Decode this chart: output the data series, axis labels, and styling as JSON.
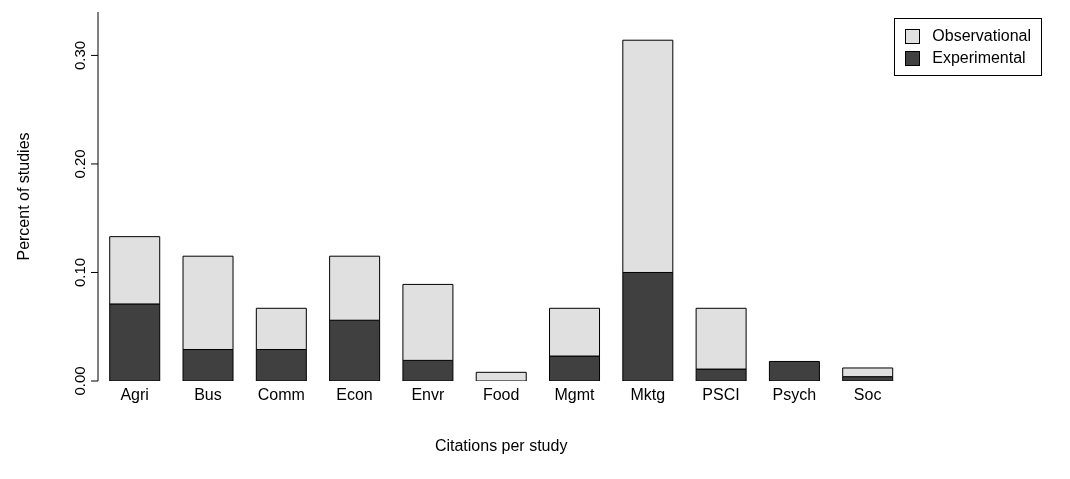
{
  "chart_data": {
    "type": "bar",
    "stacked": true,
    "xlabel": "Citations per study",
    "ylabel": "Percent of studies",
    "categories": [
      "Agri",
      "Bus",
      "Comm",
      "Econ",
      "Envr",
      "Food",
      "Mgmt",
      "Mktg",
      "PSCI",
      "Psych",
      "Soc"
    ],
    "series": [
      {
        "name": "Experimental",
        "color": "#404040",
        "values": [
          0.071,
          0.029,
          0.029,
          0.056,
          0.019,
          0,
          0.023,
          0.1,
          0.011,
          0.018,
          0.004
        ]
      },
      {
        "name": "Observational",
        "color": "#e0e0e0",
        "values": [
          0.062,
          0.086,
          0.038,
          0.059,
          0.07,
          0.008,
          0.044,
          0.214,
          0.056,
          0,
          0.008
        ]
      }
    ],
    "ylim": [
      0,
      0.34
    ],
    "yticks": [
      {
        "value": 0,
        "label": "0.00"
      },
      {
        "value": 0.1,
        "label": "0.10"
      },
      {
        "value": 0.2,
        "label": "0.20"
      },
      {
        "value": 0.3,
        "label": "0.30"
      }
    ],
    "grid": false,
    "legend": "top right"
  }
}
